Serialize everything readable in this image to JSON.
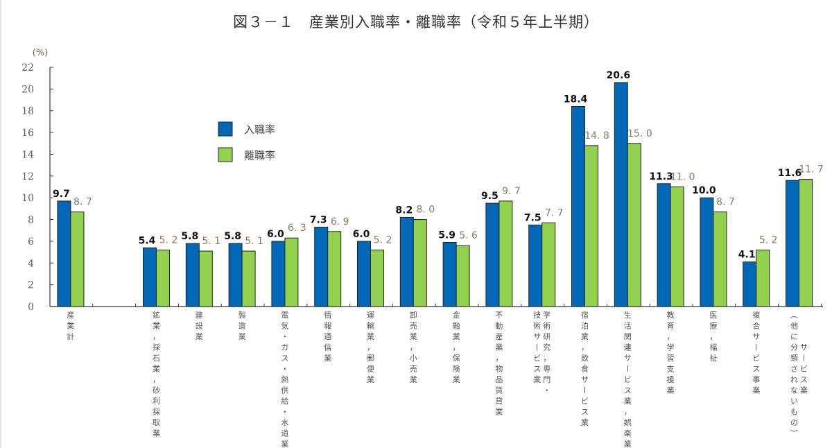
{
  "chart_data": {
    "type": "bar",
    "title": "図３－１　産業別入職率・離職率（令和５年上半期）",
    "xlabel": "",
    "ylabel": "(%)",
    "ylim": [
      0,
      22
    ],
    "yticks": [
      0,
      2,
      4,
      6,
      8,
      10,
      12,
      14,
      16,
      18,
      20,
      22
    ],
    "grid": false,
    "legend_position": "upper-left-inside",
    "categories": [
      [
        "産業計"
      ],
      [
        "鉱業，採石業，砂利採取業"
      ],
      [
        "建設業"
      ],
      [
        "製造業"
      ],
      [
        "電気・ガス・熱供給・水道業"
      ],
      [
        "情報通信業"
      ],
      [
        "運輸業，郵便業"
      ],
      [
        "卸売業，小売業"
      ],
      [
        "金融業，保険業"
      ],
      [
        "不動産業，物品賃貸業"
      ],
      [
        "学術研究，専門・",
        "技術サービス業"
      ],
      [
        "宿泊業，飲食サービス業"
      ],
      [
        "生活関連サービス業，娯楽業"
      ],
      [
        "教育，学習支援業"
      ],
      [
        "医療，福祉"
      ],
      [
        "複合サービス事業"
      ],
      [
        "サービス業",
        "（他に分類されないもの）"
      ]
    ],
    "series": [
      {
        "name": "入職率",
        "color": "#0068b7",
        "values": [
          9.7,
          5.4,
          5.8,
          5.8,
          6.0,
          7.3,
          6.0,
          8.2,
          5.9,
          9.5,
          7.5,
          18.4,
          20.6,
          11.3,
          10.0,
          4.1,
          11.6
        ],
        "labels": [
          "9.7",
          "5.4",
          "5.8",
          "5.8",
          "6.0",
          "7.3",
          "6.0",
          "8.2",
          "5.9",
          "9.5",
          "7.5",
          "18.4",
          "20.6",
          "11.3",
          "10.0",
          "4.1",
          "11.6"
        ]
      },
      {
        "name": "離職率",
        "color": "#92d050",
        "values": [
          8.7,
          5.2,
          5.1,
          5.1,
          6.3,
          6.9,
          5.2,
          8.0,
          5.6,
          9.7,
          7.7,
          14.8,
          15.0,
          11.0,
          8.7,
          5.2,
          11.7
        ],
        "labels": [
          "8. 7",
          "5. 2",
          "5. 1",
          "5. 1",
          "6. 3",
          "6. 9",
          "5. 2",
          "8. 0",
          "5. 6",
          "9. 7",
          "7. 7",
          "14. 8",
          "15. 0",
          "11. 0",
          "8. 7",
          "5. 2",
          "11. 7"
        ]
      }
    ]
  }
}
